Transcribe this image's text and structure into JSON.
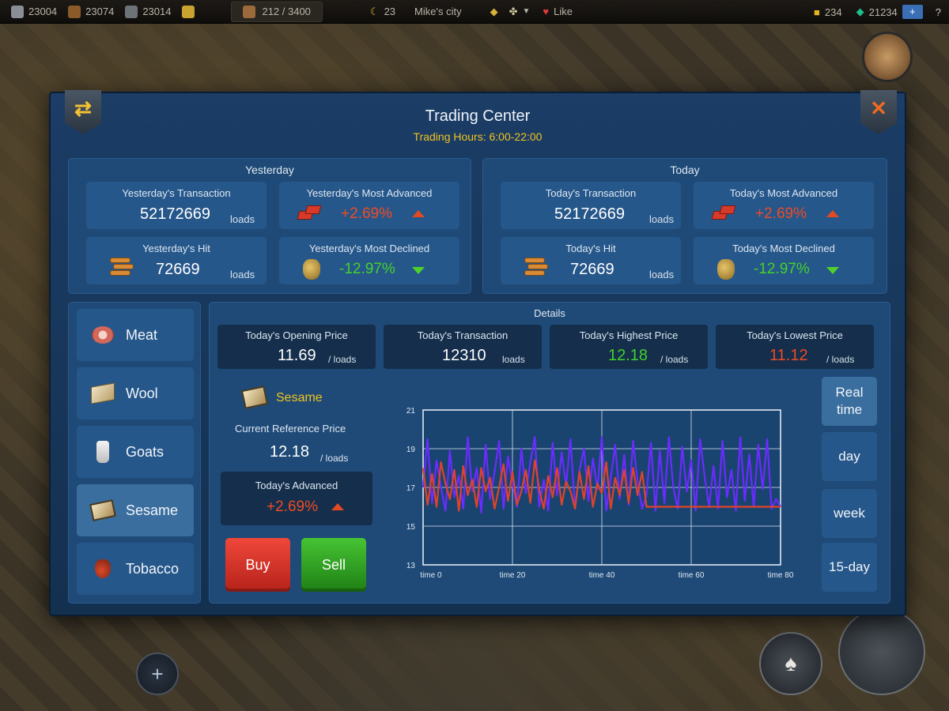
{
  "topbar": {
    "res1": "23004",
    "res2": "23074",
    "res3": "23014",
    "population": "212 / 3400",
    "moon_count": "23",
    "city_name": "Mike's city",
    "like_label": "Like",
    "gold": "234",
    "gems": "21234",
    "plus": "+"
  },
  "panel": {
    "title": "Trading Center",
    "hours": "Trading Hours: 6:00-22:00"
  },
  "yesterday": {
    "heading": "Yesterday",
    "transaction_title": "Yesterday's Transaction",
    "transaction_value": "52172669",
    "transaction_unit": "loads",
    "advanced_title": "Yesterday's Most Advanced",
    "advanced_value": "+2.69%",
    "hit_title": "Yesterday's Hit",
    "hit_value": "72669",
    "hit_unit": "loads",
    "declined_title": "Yesterday's Most Declined",
    "declined_value": "-12.97%"
  },
  "today": {
    "heading": "Today",
    "transaction_title": "Today's Transaction",
    "transaction_value": "52172669",
    "transaction_unit": "loads",
    "advanced_title": "Today's Most Advanced",
    "advanced_value": "+2.69%",
    "hit_title": "Today's Hit",
    "hit_value": "72669",
    "hit_unit": "loads",
    "declined_title": "Today's Most Declined",
    "declined_value": "-12.97%"
  },
  "goods": {
    "items": [
      {
        "label": "Meat"
      },
      {
        "label": "Wool"
      },
      {
        "label": "Goats"
      },
      {
        "label": "Sesame"
      },
      {
        "label": "Tobacco"
      }
    ],
    "selected": "Sesame"
  },
  "details": {
    "heading": "Details",
    "opening_title": "Today's Opening Price",
    "opening_value": "11.69",
    "opening_unit": "/ loads",
    "transaction_title": "Today's Transaction",
    "transaction_value": "12310",
    "transaction_unit": "loads",
    "highest_title": "Today's Highest Price",
    "highest_value": "12.18",
    "highest_unit": "/ loads",
    "lowest_title": "Today's Lowest Price",
    "lowest_value": "11.12",
    "lowest_unit": "/ loads",
    "good_name": "Sesame",
    "ref_price_title": "Current Reference Price",
    "ref_price_value": "12.18",
    "ref_price_unit": "/ loads",
    "advanced_title": "Today's Advanced",
    "advanced_value": "+2.69%",
    "buy_label": "Buy",
    "sell_label": "Sell"
  },
  "ranges": {
    "realtime": "Real time",
    "day": "day",
    "week": "week",
    "fifteen_day": "15-day",
    "selected": "Real time"
  },
  "colors": {
    "panel": "#1b3d66",
    "accent_yellow": "#f1c21e",
    "up_red": "#ef4b24",
    "down_green": "#43d12b",
    "buy": "#e03a2e",
    "sell": "#34a826",
    "series_purple": "#6a2cff",
    "series_red": "#e0432a"
  },
  "chart_data": {
    "type": "line",
    "yticks": [
      "21",
      "19",
      "17",
      "15",
      "13"
    ],
    "xticks": [
      "time 0",
      "time 20",
      "time 40",
      "time 60",
      "time 80"
    ],
    "ylim": [
      13,
      21
    ],
    "xlim": [
      0,
      80
    ],
    "grid": true,
    "series": [
      {
        "color": "#6a2cff",
        "x": [
          0,
          1,
          2,
          3,
          4,
          5,
          6,
          7,
          8,
          9,
          10,
          11,
          12,
          13,
          14,
          15,
          16,
          17,
          18,
          19,
          20,
          21,
          22,
          23,
          24,
          25,
          26,
          27,
          28,
          29,
          30,
          31,
          32,
          33,
          34,
          35,
          36,
          37,
          38,
          39,
          40,
          41,
          42,
          43,
          44,
          45,
          46,
          47,
          48,
          49,
          50,
          51,
          52,
          53,
          54,
          55,
          56,
          57,
          58,
          59,
          60,
          61,
          62,
          63,
          64,
          65,
          66,
          67,
          68,
          69,
          70,
          71,
          72,
          73,
          74,
          75,
          76,
          77,
          78,
          79,
          80
        ],
        "values": [
          17.0,
          19.5,
          16.2,
          18.4,
          17.0,
          15.8,
          18.9,
          16.5,
          17.6,
          15.9,
          19.6,
          16.8,
          18.0,
          15.7,
          19.2,
          16.4,
          17.8,
          19.4,
          15.9,
          18.6,
          17.2,
          16.0,
          19.0,
          16.7,
          18.3,
          19.6,
          16.0,
          17.4,
          15.8,
          19.3,
          16.6,
          18.8,
          17.1,
          19.5,
          15.9,
          17.9,
          19.0,
          16.3,
          18.5,
          16.9,
          19.6,
          15.8,
          17.5,
          19.2,
          16.4,
          18.7,
          16.1,
          19.4,
          17.3,
          15.9,
          16.6,
          19.3,
          15.8,
          18.9,
          16.2,
          19.6,
          17.0,
          15.9,
          19.1,
          16.8,
          18.4,
          15.8,
          19.5,
          17.6,
          16.0,
          18.1,
          15.9,
          19.4,
          16.5,
          17.9,
          15.8,
          19.6,
          16.3,
          18.7,
          16.0,
          19.2,
          16.9,
          19.5,
          15.9,
          16.4,
          16.0
        ]
      },
      {
        "color": "#e0432a",
        "x": [
          0,
          1,
          2,
          3,
          4,
          5,
          6,
          7,
          8,
          9,
          10,
          11,
          12,
          13,
          14,
          15,
          16,
          17,
          18,
          19,
          20,
          21,
          22,
          23,
          24,
          25,
          26,
          27,
          28,
          29,
          30,
          31,
          32,
          33,
          34,
          35,
          36,
          37,
          38,
          39,
          40,
          41,
          42,
          43,
          44,
          45,
          46,
          47,
          48,
          49,
          50,
          51,
          52,
          53,
          54,
          55,
          56,
          57,
          58,
          59,
          60,
          61,
          62,
          63,
          64,
          65,
          66,
          67,
          68,
          69,
          70,
          71,
          72,
          73,
          74,
          75,
          76,
          77,
          78,
          79,
          80
        ],
        "values": [
          18.0,
          16.1,
          17.7,
          16.0,
          18.3,
          17.2,
          16.4,
          17.9,
          15.8,
          18.1,
          16.6,
          17.4,
          16.0,
          18.0,
          16.8,
          17.5,
          15.9,
          17.0,
          18.2,
          16.3,
          17.8,
          16.1,
          16.8,
          17.9,
          16.2,
          18.4,
          16.9,
          15.9,
          17.6,
          16.5,
          18.0,
          16.1,
          17.3,
          16.8,
          15.9,
          17.8,
          16.4,
          18.1,
          16.0,
          17.2,
          16.7,
          18.3,
          15.9,
          17.5,
          16.6,
          17.9,
          16.2,
          18.0,
          16.6,
          17.8,
          16.0,
          16.0,
          16.0,
          16.0,
          16.0,
          16.0,
          16.0,
          16.0,
          16.0,
          16.0,
          16.0,
          16.0,
          16.0,
          16.0,
          16.0,
          16.0,
          16.0,
          16.0,
          16.0,
          16.0,
          16.0,
          16.0,
          16.0,
          16.0,
          16.0,
          16.0,
          16.0,
          16.0,
          16.0,
          16.0,
          16.0
        ]
      }
    ]
  }
}
